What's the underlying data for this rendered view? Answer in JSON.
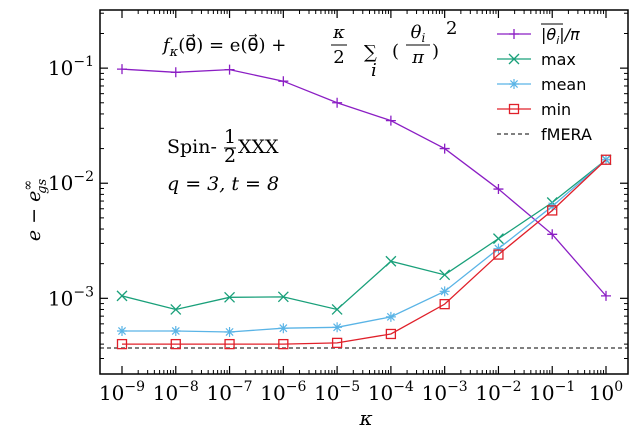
{
  "chart_data": {
    "type": "line",
    "x_scale": "log",
    "y_scale": "log",
    "x": [
      1e-09,
      1e-08,
      1e-07,
      1e-06,
      1e-05,
      0.0001,
      0.001,
      0.01,
      0.1,
      1.0
    ],
    "xlim": [
      1e-09,
      1.0
    ],
    "ylim": [
      0.00022,
      0.32
    ],
    "xlabel": "κ",
    "ylabel": "e − e",
    "ylabel_sup": "∞",
    "ylabel_sub": "gs",
    "x_ticks": [
      {
        "value": 1e-09,
        "base": "10",
        "exp": "−9"
      },
      {
        "value": 1e-08,
        "base": "10",
        "exp": "−8"
      },
      {
        "value": 1e-07,
        "base": "10",
        "exp": "−7"
      },
      {
        "value": 1e-06,
        "base": "10",
        "exp": "−6"
      },
      {
        "value": 1e-05,
        "base": "10",
        "exp": "−5"
      },
      {
        "value": 0.0001,
        "base": "10",
        "exp": "−4"
      },
      {
        "value": 0.001,
        "base": "10",
        "exp": "−3"
      },
      {
        "value": 0.01,
        "base": "10",
        "exp": "−2"
      },
      {
        "value": 0.1,
        "base": "10",
        "exp": "−1"
      },
      {
        "value": 1.0,
        "base": "10",
        "exp": "0"
      }
    ],
    "y_ticks": [
      {
        "value": 0.001,
        "base": "10",
        "exp": "−3"
      },
      {
        "value": 0.01,
        "base": "10",
        "exp": "−2"
      },
      {
        "value": 0.1,
        "base": "10",
        "exp": "−1"
      }
    ],
    "grid": false,
    "legend_position": "top-right",
    "series": [
      {
        "name": "|θi|/π",
        "legend_text": "|θ",
        "legend_sub": "i",
        "legend_tail": "|/π",
        "color": "#8b1ec4",
        "marker": "plus",
        "values": [
          0.098,
          0.092,
          0.097,
          0.077,
          0.05,
          0.035,
          0.02,
          0.0089,
          0.0036,
          0.00105
        ]
      },
      {
        "name": "max",
        "legend_text": "max",
        "color": "#19a07a",
        "marker": "x",
        "values": [
          0.00105,
          0.0008,
          0.00102,
          0.00103,
          0.0008,
          0.0021,
          0.0016,
          0.0033,
          0.0068,
          0.016
        ]
      },
      {
        "name": "mean",
        "legend_text": "mean",
        "color": "#5ab4e6",
        "marker": "star",
        "values": [
          0.00052,
          0.00052,
          0.00051,
          0.00055,
          0.00056,
          0.00069,
          0.00115,
          0.0027,
          0.0063,
          0.016
        ]
      },
      {
        "name": "min",
        "legend_text": "min",
        "color": "#e0202a",
        "marker": "square",
        "values": [
          0.0004,
          0.0004,
          0.0004,
          0.0004,
          0.00041,
          0.00049,
          0.00089,
          0.0024,
          0.0058,
          0.016
        ]
      }
    ],
    "reference_line": {
      "name": "fMERA",
      "legend_text": "fMERA",
      "color": "#000000",
      "style": "dashed",
      "value": 0.00037
    },
    "annotations": {
      "formula": {
        "f": "f",
        "f_sub": "κ",
        "lhs_arg": "(θ⃗) = e(θ⃗) +",
        "frac_num": "κ",
        "frac_den": "2",
        "sum": "∑",
        "sum_sub": "i",
        "inner_num": "θ",
        "inner_num_sub": "i",
        "inner_den": "π",
        "power": "2"
      },
      "model_line1": "Spin-",
      "model_frac_num": "1",
      "model_frac_den": "2",
      "model_line1_tail": " XXX",
      "params_line": "q = 3, t = 8"
    }
  }
}
